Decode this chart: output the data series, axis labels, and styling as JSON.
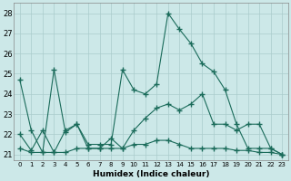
{
  "xlabel": "Humidex (Indice chaleur)",
  "background_color": "#cce8e8",
  "grid_color": "#aacccc",
  "line_color": "#1a6b5a",
  "xlim": [
    -0.5,
    23.5
  ],
  "ylim": [
    20.7,
    28.5
  ],
  "yticks": [
    21,
    22,
    23,
    24,
    25,
    26,
    27,
    28
  ],
  "xticks": [
    0,
    1,
    2,
    3,
    4,
    5,
    6,
    7,
    8,
    9,
    10,
    11,
    12,
    13,
    14,
    15,
    16,
    17,
    18,
    19,
    20,
    21,
    22,
    23
  ],
  "series": [
    {
      "x": [
        0,
        1,
        2,
        3,
        4,
        5,
        6,
        7,
        8,
        9,
        10,
        11,
        12,
        13,
        14,
        15,
        16,
        17,
        18,
        19,
        20,
        21,
        22,
        23
      ],
      "y": [
        24.7,
        22.2,
        21.1,
        25.2,
        22.1,
        22.5,
        21.5,
        21.5,
        21.5,
        25.2,
        24.2,
        24.0,
        24.5,
        28.0,
        27.2,
        26.5,
        25.5,
        25.1,
        24.2,
        22.5,
        21.3,
        21.3,
        21.3,
        21.0
      ]
    },
    {
      "x": [
        0,
        1,
        2,
        3,
        4,
        5,
        6,
        7,
        8,
        9,
        10,
        11,
        12,
        13,
        14,
        15,
        16,
        17,
        18,
        19,
        20,
        21,
        22,
        23
      ],
      "y": [
        22.0,
        21.2,
        22.2,
        21.1,
        22.2,
        22.5,
        21.3,
        21.3,
        21.8,
        21.3,
        22.2,
        22.8,
        23.3,
        23.5,
        23.2,
        23.5,
        24.0,
        22.5,
        22.5,
        22.2,
        22.5,
        22.5,
        21.3,
        21.0
      ]
    },
    {
      "x": [
        0,
        1,
        2,
        3,
        4,
        5,
        6,
        7,
        8,
        9,
        10,
        11,
        12,
        13,
        14,
        15,
        16,
        17,
        18,
        19,
        20,
        21,
        22,
        23
      ],
      "y": [
        21.3,
        21.1,
        21.1,
        21.1,
        21.1,
        21.3,
        21.3,
        21.3,
        21.3,
        21.3,
        21.5,
        21.5,
        21.7,
        21.7,
        21.5,
        21.3,
        21.3,
        21.3,
        21.3,
        21.2,
        21.2,
        21.1,
        21.1,
        21.0
      ]
    }
  ]
}
